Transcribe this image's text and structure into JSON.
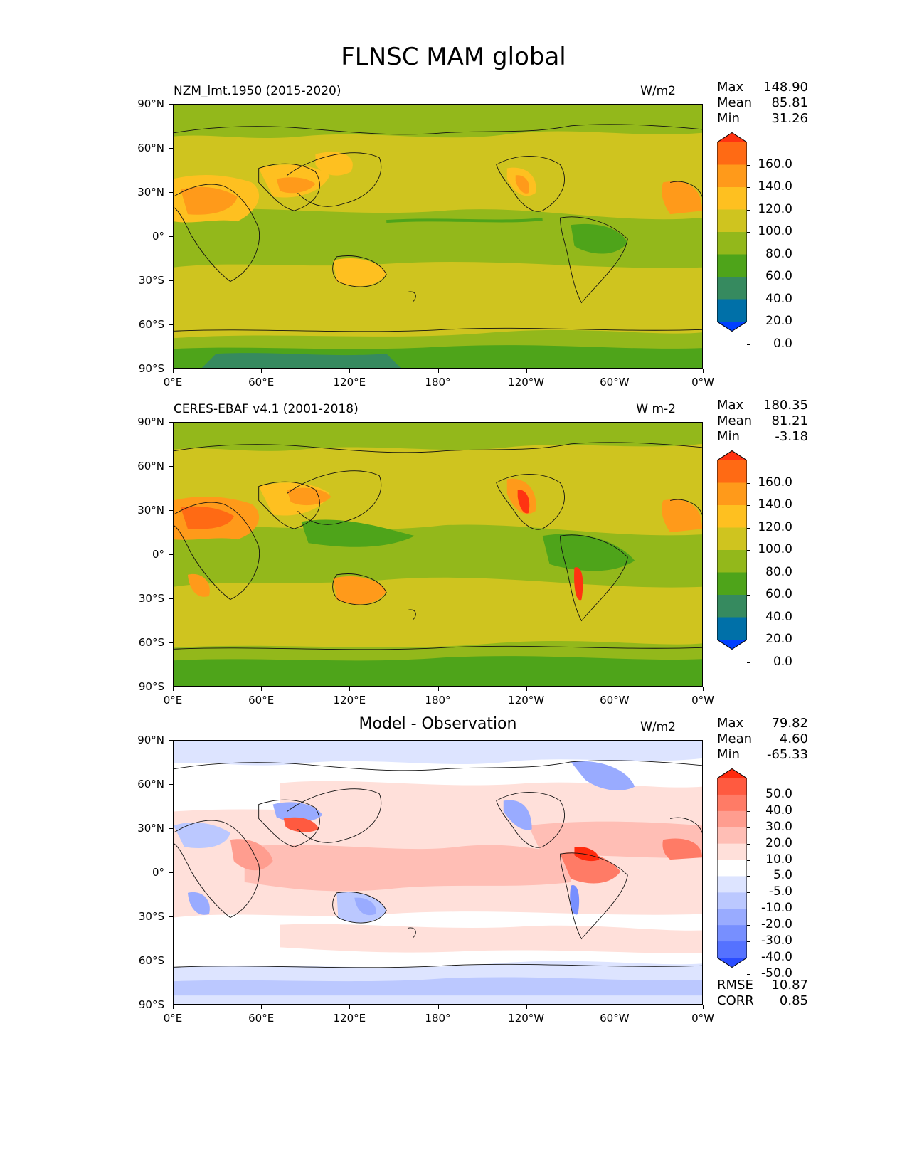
{
  "figure": {
    "title": "FLNSC MAM global"
  },
  "axes": {
    "lat_labels": [
      "90°N",
      "60°N",
      "30°N",
      "0°",
      "30°S",
      "60°S",
      "90°S"
    ],
    "lon_labels": [
      "0°E",
      "60°E",
      "120°E",
      "180°",
      "120°W",
      "60°W",
      "0°W"
    ]
  },
  "panels": [
    {
      "title": "NZM_lmt.1950 (2015-2020)",
      "units": "W/m2",
      "stats": {
        "max_label": "Max",
        "max": "148.90",
        "mean_label": "Mean",
        "mean": "85.81",
        "min_label": "Min",
        "min": "31.26"
      },
      "colorbar": {
        "labels": [
          "160.0",
          "140.0",
          "120.0",
          "100.0",
          "80.0",
          "60.0",
          "40.0",
          "20.0",
          "0.0"
        ],
        "colors": [
          "#ff3311",
          "#ff6a14",
          "#ff9a1a",
          "#fec020",
          "#cfc41f",
          "#93b81b",
          "#4ea41a",
          "#368a5f",
          "#0070a8",
          "#0040ff"
        ]
      }
    },
    {
      "title": "CERES-EBAF v4.1 (2001-2018)",
      "units": "W m-2",
      "stats": {
        "max_label": "Max",
        "max": "180.35",
        "mean_label": "Mean",
        "mean": "81.21",
        "min_label": "Min",
        "min": "-3.18"
      },
      "colorbar": {
        "labels": [
          "160.0",
          "140.0",
          "120.0",
          "100.0",
          "80.0",
          "60.0",
          "40.0",
          "20.0",
          "0.0"
        ],
        "colors": [
          "#ff3311",
          "#ff6a14",
          "#ff9a1a",
          "#fec020",
          "#cfc41f",
          "#93b81b",
          "#4ea41a",
          "#368a5f",
          "#0070a8",
          "#0040ff"
        ]
      }
    },
    {
      "title": "Model - Observation",
      "units": "W/m2",
      "stats": {
        "max_label": "Max",
        "max": "79.82",
        "mean_label": "Mean",
        "mean": "4.60",
        "min_label": "Min",
        "min": "-65.33"
      },
      "extra": {
        "rmse_label": "RMSE",
        "rmse": "10.87",
        "corr_label": "CORR",
        "corr": "0.85"
      },
      "colorbar": {
        "labels": [
          "50.0",
          "40.0",
          "30.0",
          "20.0",
          "10.0",
          "5.0",
          "-5.0",
          "-10.0",
          "-20.0",
          "-30.0",
          "-40.0",
          "-50.0"
        ],
        "colors": [
          "#ff2a0d",
          "#ff5a40",
          "#ff7b66",
          "#ff9d8f",
          "#ffbeb5",
          "#ffe0da",
          "#ffffff",
          "#dde4ff",
          "#bbc8ff",
          "#99abff",
          "#778fff",
          "#5572ff",
          "#2a4cff"
        ]
      }
    }
  ]
}
